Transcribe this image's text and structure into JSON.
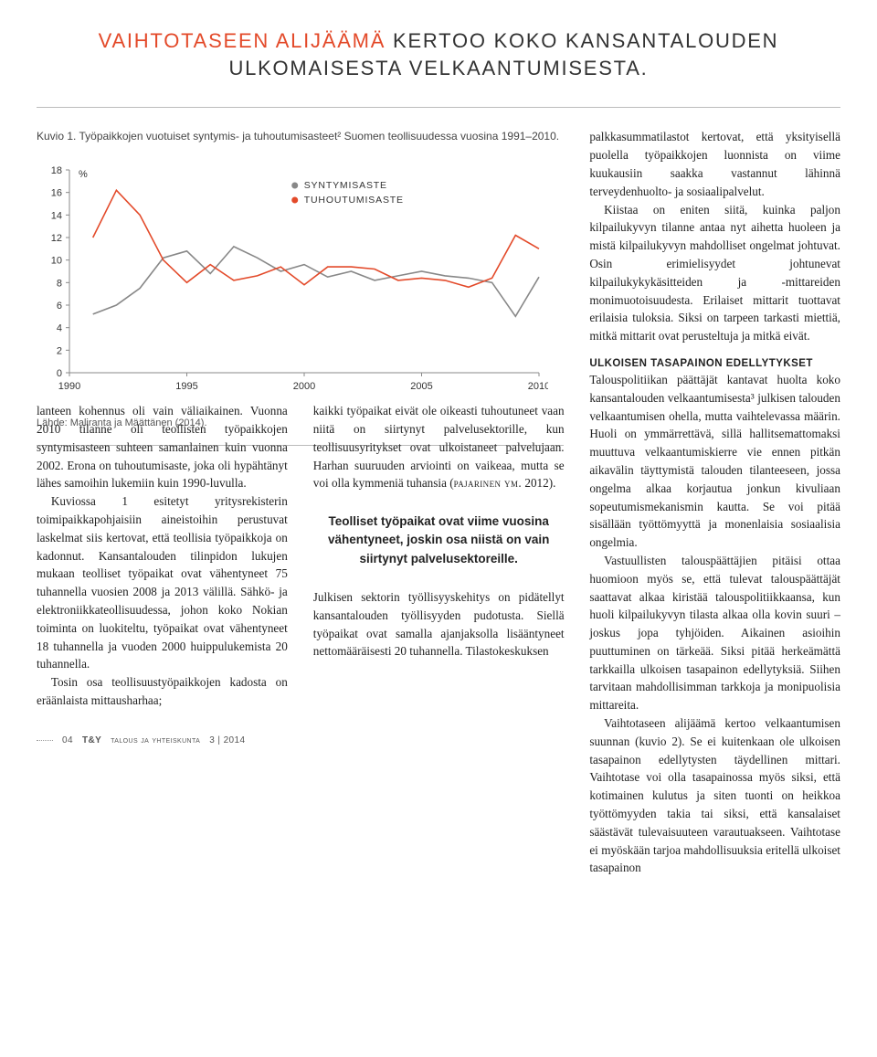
{
  "headline": {
    "accent": "VAIHTOTASEEN ALIJÄÄMÄ",
    "rest": " KERTOO KOKO KANSANTALOUDEN ULKOMAISESTA VELKAANTUMISESTA."
  },
  "chart": {
    "type": "line",
    "caption": "Kuvio 1. Työpaikkojen vuotuiset syntymis- ja tuhoutumisasteet² Suomen teollisuudessa vuosina 1991–2010.",
    "source": "Lähde: Maliranta ja Määttänen (2014).",
    "y_unit": "%",
    "xlim": [
      1990,
      2010
    ],
    "ylim": [
      0,
      18
    ],
    "ytick_step": 2,
    "yticks": [
      0,
      2,
      4,
      6,
      8,
      10,
      12,
      14,
      16,
      18
    ],
    "xticks": [
      1990,
      1995,
      2000,
      2005,
      2010
    ],
    "background_color": "#ffffff",
    "axis_color": "#888888",
    "tick_color": "#888888",
    "label_fontsize": 11,
    "legend_fontsize": 10.5,
    "line_width": 1.6,
    "series": [
      {
        "name": "SYNTYMISASTE",
        "color": "#888888",
        "bullet": "●",
        "x": [
          1991,
          1992,
          1993,
          1994,
          1995,
          1996,
          1997,
          1998,
          1999,
          2000,
          2001,
          2002,
          2003,
          2004,
          2005,
          2006,
          2007,
          2008,
          2009,
          2010
        ],
        "y": [
          5.2,
          6.0,
          7.5,
          10.2,
          10.8,
          8.8,
          11.2,
          10.2,
          9.0,
          9.6,
          8.5,
          9.0,
          8.2,
          8.6,
          9.0,
          8.6,
          8.4,
          8.0,
          5.0,
          8.5
        ]
      },
      {
        "name": "TUHOUTUMISASTE",
        "color": "#e34a2a",
        "bullet": "●",
        "x": [
          1991,
          1992,
          1993,
          1994,
          1995,
          1996,
          1997,
          1998,
          1999,
          2000,
          2001,
          2002,
          2003,
          2004,
          2005,
          2006,
          2007,
          2008,
          2009,
          2010
        ],
        "y": [
          12.0,
          16.2,
          14.0,
          10.0,
          8.0,
          9.6,
          8.2,
          8.6,
          9.4,
          7.8,
          9.4,
          9.4,
          9.2,
          8.2,
          8.4,
          8.2,
          7.6,
          8.4,
          12.2,
          11.0
        ]
      }
    ]
  },
  "text": {
    "col1": {
      "p1": "lanteen kohennus oli vain väliaikainen. Vuonna 2010 tilanne oli teollisten työpaikkojen syntymisasteen suhteen samanlainen kuin vuonna 2002. Erona on tuhoutumisaste, joka oli hypähtänyt lähes samoihin lukemiin kuin 1990-luvulla.",
      "p2": "Kuviossa 1 esitetyt yritysrekisterin toimipaikkapohjaisiin aineistoihin perustuvat laskelmat siis kertovat, että teollisia työpaikkoja on kadonnut. Kansantalouden tilinpidon lukujen mukaan teolliset työpaikat ovat vähentyneet 75 tuhannella vuosien 2008 ja 2013 välillä. Sähkö- ja elektroniikkateollisuudessa, johon koko Nokian toiminta on luokiteltu, työpaikat ovat vähentyneet 18 tuhannella ja vuoden 2000 huippulukemista 20 tuhannella.",
      "p3": "Tosin osa teollisuustyöpaikkojen kadosta on eräänlaista mittausharhaa;"
    },
    "col2": {
      "p1": "kaikki työpaikat eivät ole oikeasti tuhoutuneet vaan niitä on siirtynyt palvelusektorille, kun teollisuusyritykset ovat ulkoistaneet palvelujaan. Harhan suuruuden arviointi on vaikeaa, mutta se voi olla kymmeniä tuhansia (PAJARINEN YM. 2012).",
      "pull": "Teolliset työpaikat ovat viime vuosina vähentyneet, joskin osa niistä on vain siirtynyt palvelusektoreille.",
      "p2": "Julkisen sektorin työllisyyskehitys on pidätellyt kansantalouden työllisyyden pudotusta. Siellä työpaikat ovat samalla ajanjaksolla lisääntyneet nettomääräisesti 20 tuhannella. Tilastokeskuksen"
    },
    "col3": {
      "p1": "palkkasummatilastot kertovat, että yksityisellä puolella työpaikkojen luonnista on viime kuukausiin saakka vastannut lähinnä terveydenhuolto- ja sosiaalipalvelut.",
      "p2": "Kiistaa on eniten siitä, kuinka paljon kilpailukyvyn tilanne antaa nyt aihetta huoleen ja mistä kilpailukyvyn mahdolliset ongelmat johtuvat. Osin erimielisyydet johtunevat kilpailukykykäsitteiden ja -mittareiden monimuotoisuudesta. Erilaiset mittarit tuottavat erilaisia tuloksia. Siksi on tarpeen tarkasti miettiä, mitkä mittarit ovat perusteltuja ja mitkä eivät.",
      "subhead": "ULKOISEN TASAPAINON EDELLYTYKSET",
      "p3": "Talouspolitiikan päättäjät kantavat huolta koko kansantalouden velkaantumisesta³ julkisen talouden velkaantumisen ohella, mutta vaihtelevassa määrin. Huoli on ymmärrettävä, sillä hallitsemattomaksi muuttuva velkaantumiskierre vie ennen pitkän aikavälin täyttymistä talouden tilanteeseen, jossa ongelma alkaa korjautua jonkun kivuliaan sopeutumismekanismin kautta. Se voi pitää sisällään työttömyyttä ja monenlaisia sosiaalisia ongelmia.",
      "p4": "Vastuullisten talouspäättäjien pitäisi ottaa huomioon myös se, että tulevat talouspäättäjät saattavat alkaa kiristää talouspolitiikkaansa, kun huoli kilpailukyvyn tilasta alkaa olla kovin suuri – joskus jopa tyhjöiden. Aikainen asioihin puuttuminen on tärkeää. Siksi pitää herkeämättä tarkkailla ulkoisen tasapainon edellytyksiä. Siihen tarvitaan mahdollisimman tarkkoja ja monipuolisia mittareita.",
      "p5": "Vaihtotaseen alijäämä kertoo velkaantumisen suunnan (kuvio 2). Se ei kuitenkaan ole ulkoisen tasapainon edellytysten täydellinen mittari. Vaihtotase voi olla tasapainossa myös siksi, että kotimainen kulutus ja siten tuonti on heikkoa työttömyyden takia tai siksi, että kansalaiset säästävät tulevaisuuteen varautuakseen. Vaihtotase ei myöskään tarjoa mahdollisuuksia eritellä ulkoiset tasapainon"
    }
  },
  "footer": {
    "page": "04",
    "abbrev": "T&Y",
    "journal": "talous ja yhteiskunta",
    "issue": "3 | 2014"
  }
}
